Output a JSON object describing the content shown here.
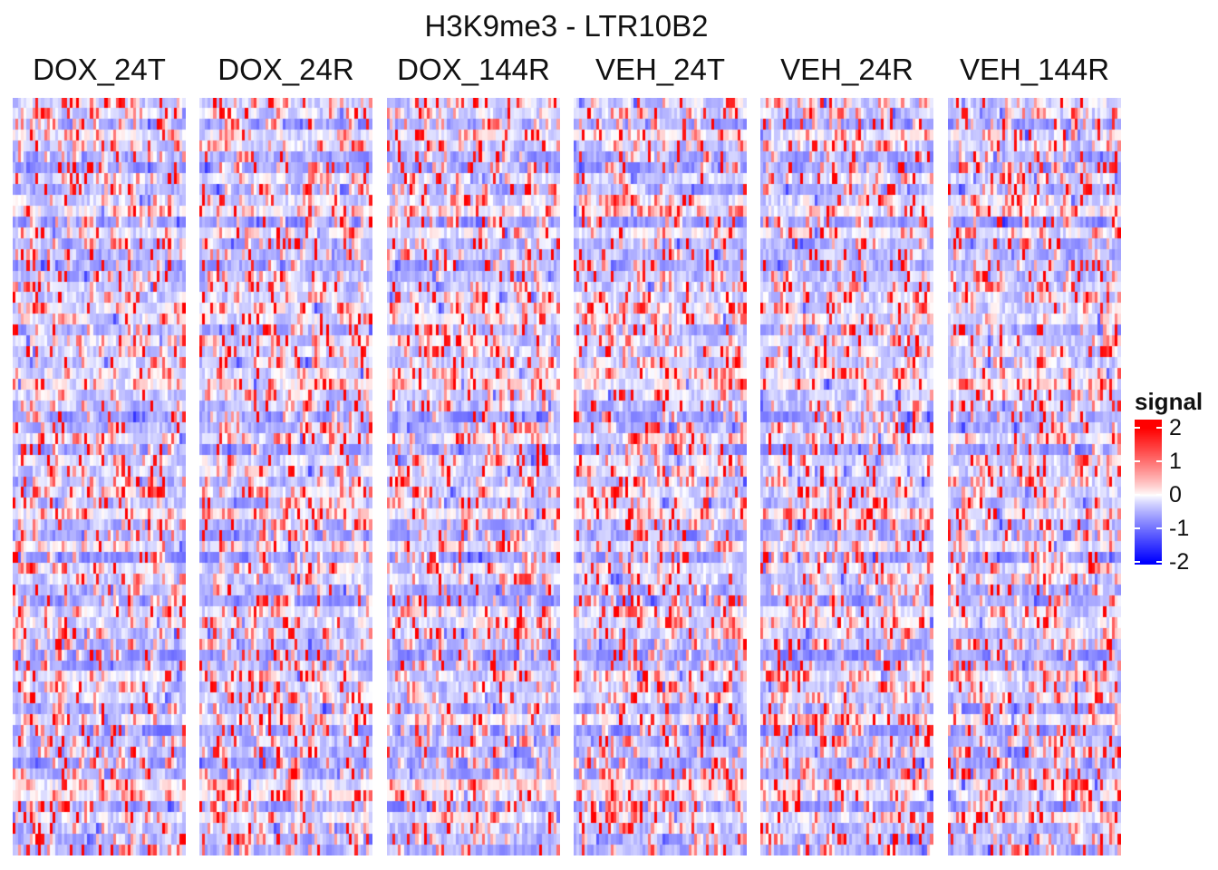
{
  "chart_data": {
    "type": "heatmap",
    "title": "H3K9me3 - LTR10B2",
    "panels": [
      "DOX_24T",
      "DOX_24R",
      "DOX_144R",
      "VEH_24T",
      "VEH_24R",
      "VEH_144R"
    ],
    "value_range": [
      -2,
      2
    ],
    "colormap": {
      "low": "#0000ff",
      "mid": "#ffffff",
      "high": "#ff0000"
    },
    "legend": {
      "title": "signal",
      "position": "right",
      "ticks": [
        {
          "label": "2",
          "value": 2
        },
        {
          "label": "1",
          "value": 1
        },
        {
          "label": "0",
          "value": 0
        },
        {
          "label": "-1",
          "value": -1
        },
        {
          "label": "-2",
          "value": -2
        }
      ]
    },
    "rows": 70,
    "bins": 60,
    "xlabel": "",
    "ylabel": ""
  }
}
